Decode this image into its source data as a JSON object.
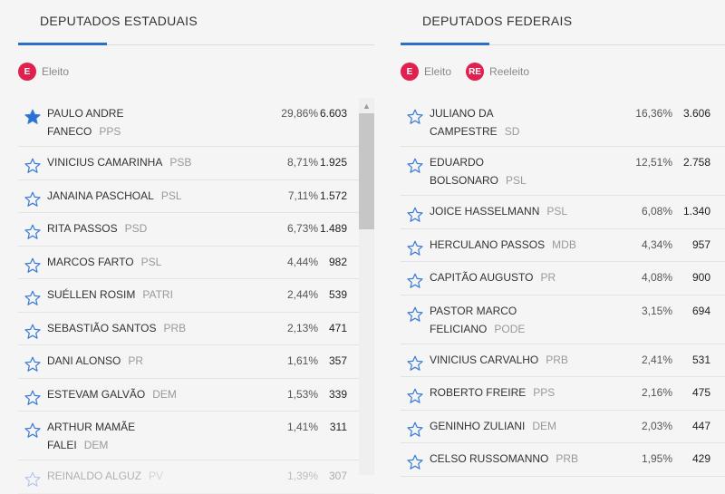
{
  "estaduais": {
    "title": "DEPUTADOS ESTADUAIS",
    "legend": [
      {
        "badge": "E",
        "label": "Eleito"
      }
    ],
    "rows": [
      {
        "name": "PAULO ANDRE",
        "name2": "FANECO",
        "party": "PPS",
        "pct": "29,86%",
        "votes": "6.603",
        "elected": true
      },
      {
        "name": "VINICIUS CAMARINHA",
        "party": "PSB",
        "pct": "8,71%",
        "votes": "1.925"
      },
      {
        "name": "JANAINA PASCHOAL",
        "party": "PSL",
        "pct": "7,11%",
        "votes": "1.572"
      },
      {
        "name": "RITA PASSOS",
        "party": "PSD",
        "pct": "6,73%",
        "votes": "1.489"
      },
      {
        "name": "MARCOS FARTO",
        "party": "PSL",
        "pct": "4,44%",
        "votes": "982"
      },
      {
        "name": "SUÉLLEN ROSIM",
        "party": "PATRI",
        "pct": "2,44%",
        "votes": "539"
      },
      {
        "name": "SEBASTIÃO SANTOS",
        "party": "PRB",
        "pct": "2,13%",
        "votes": "471"
      },
      {
        "name": "DANI ALONSO",
        "party": "PR",
        "pct": "1,61%",
        "votes": "357"
      },
      {
        "name": "ESTEVAM GALVÃO",
        "party": "DEM",
        "pct": "1,53%",
        "votes": "339"
      },
      {
        "name": "ARTHUR MAMÃE",
        "name2": "FALEI",
        "party": "DEM",
        "pct": "1,41%",
        "votes": "311"
      },
      {
        "name": "REINALDO ALGUZ",
        "party": "PV",
        "pct": "1,39%",
        "votes": "307"
      }
    ]
  },
  "federais": {
    "title": "DEPUTADOS FEDERAIS",
    "legend": [
      {
        "badge": "E",
        "label": "Eleito"
      },
      {
        "badge": "RE",
        "label": "Reeleito"
      }
    ],
    "rows": [
      {
        "name": "JULIANO DA",
        "name2": "CAMPESTRE",
        "party": "SD",
        "pct": "16,36%",
        "votes": "3.606"
      },
      {
        "name": "EDUARDO",
        "name2": "BOLSONARO",
        "party": "PSL",
        "pct": "12,51%",
        "votes": "2.758"
      },
      {
        "name": "JOICE HASSELMANN",
        "party": "PSL",
        "pct": "6,08%",
        "votes": "1.340"
      },
      {
        "name": "HERCULANO PASSOS",
        "party": "MDB",
        "pct": "4,34%",
        "votes": "957"
      },
      {
        "name": "CAPITÃO AUGUSTO",
        "party": "PR",
        "pct": "4,08%",
        "votes": "900"
      },
      {
        "name": "PASTOR MARCO",
        "name2": "FELICIANO",
        "party": "PODE",
        "pct": "3,15%",
        "votes": "694"
      },
      {
        "name": "VINICIUS CARVALHO",
        "party": "PRB",
        "pct": "2,41%",
        "votes": "531"
      },
      {
        "name": "ROBERTO FREIRE",
        "party": "PPS",
        "pct": "2,16%",
        "votes": "475"
      },
      {
        "name": "GENINHO ZULIANI",
        "party": "DEM",
        "pct": "2,03%",
        "votes": "447"
      },
      {
        "name": "CELSO RUSSOMANNO",
        "party": "PRB",
        "pct": "1,95%",
        "votes": "429"
      }
    ]
  },
  "colors": {
    "accent": "#2b6fc8",
    "badge": "#e0204f",
    "star_outline": "#3a7bd5",
    "star_filled": "#2a6fd6"
  }
}
